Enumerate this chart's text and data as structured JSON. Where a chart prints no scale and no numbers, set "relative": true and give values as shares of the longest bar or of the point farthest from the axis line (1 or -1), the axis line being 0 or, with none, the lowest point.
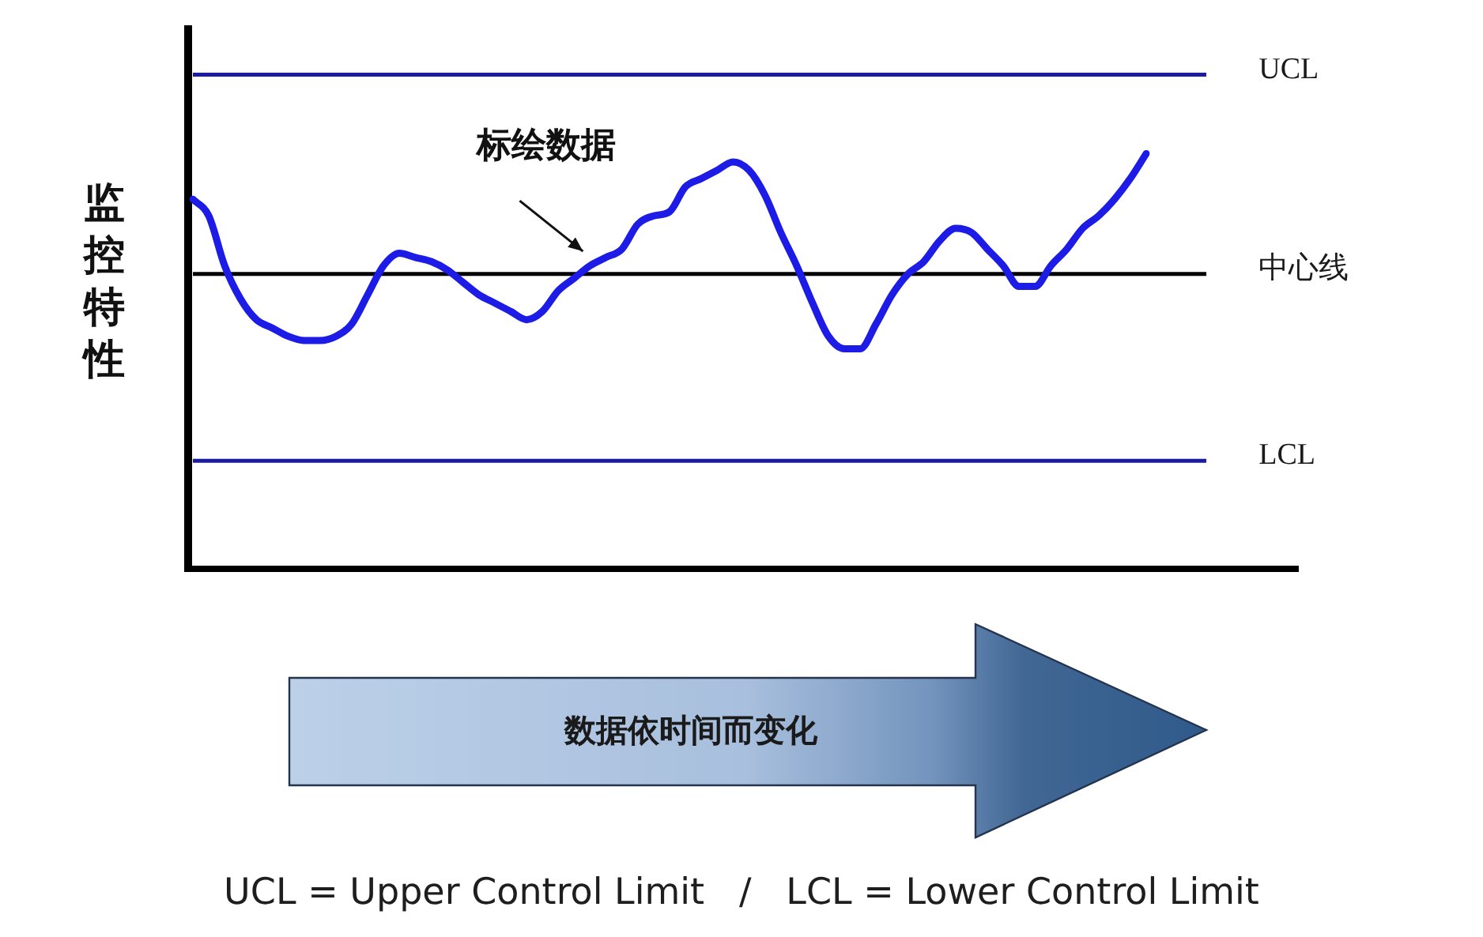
{
  "chart_data": {
    "type": "line",
    "relative": true,
    "xlabel": "数据依时间而变化",
    "ylabel": "监控特性",
    "categories": [
      null,
      null,
      null,
      null,
      null,
      null,
      null,
      null,
      null,
      null,
      null,
      null,
      null,
      null,
      null,
      null,
      null,
      null,
      null,
      null,
      null,
      null,
      null,
      null,
      null,
      null,
      null,
      null,
      null,
      null,
      null,
      null,
      null,
      null,
      null,
      null,
      null,
      null,
      null,
      null,
      null,
      null,
      null,
      null,
      null,
      null,
      null,
      null,
      null,
      null,
      null,
      null,
      null,
      null,
      null,
      null,
      null,
      null,
      null,
      null,
      null
    ],
    "series": [
      {
        "color": "#1c1ce6",
        "values": [
          0.89,
          0.85,
          0.73,
          0.65,
          0.6,
          0.58,
          0.56,
          0.55,
          0.55,
          0.56,
          0.59,
          0.66,
          0.73,
          0.76,
          0.75,
          0.74,
          0.72,
          0.69,
          0.66,
          0.64,
          0.62,
          0.6,
          0.62,
          0.67,
          0.7,
          0.73,
          0.75,
          0.77,
          0.83,
          0.85,
          0.86,
          0.92,
          0.94,
          0.96,
          0.98,
          0.96,
          0.9,
          0.81,
          0.73,
          0.64,
          0.56,
          0.53,
          0.53,
          0.59,
          0.66,
          0.71,
          0.74,
          0.79,
          0.82,
          0.81,
          0.77,
          0.73,
          0.68,
          0.68,
          0.73,
          0.77,
          0.82,
          0.85,
          0.89,
          0.94,
          1.0
        ]
      }
    ],
    "ref_lines": [
      {
        "axis": "y",
        "value": 1.19,
        "label": "UCL",
        "color": "#1c1ca0"
      },
      {
        "axis": "y",
        "value": 0.71,
        "label": "中心线",
        "color": "#000000"
      },
      {
        "axis": "y",
        "value": 0.26,
        "label": "LCL",
        "color": "#1c1ca0"
      }
    ],
    "annotations": [
      "标绘数据",
      "UCL = Upper Control Limit   /   LCL = Lower Control Limit"
    ]
  }
}
